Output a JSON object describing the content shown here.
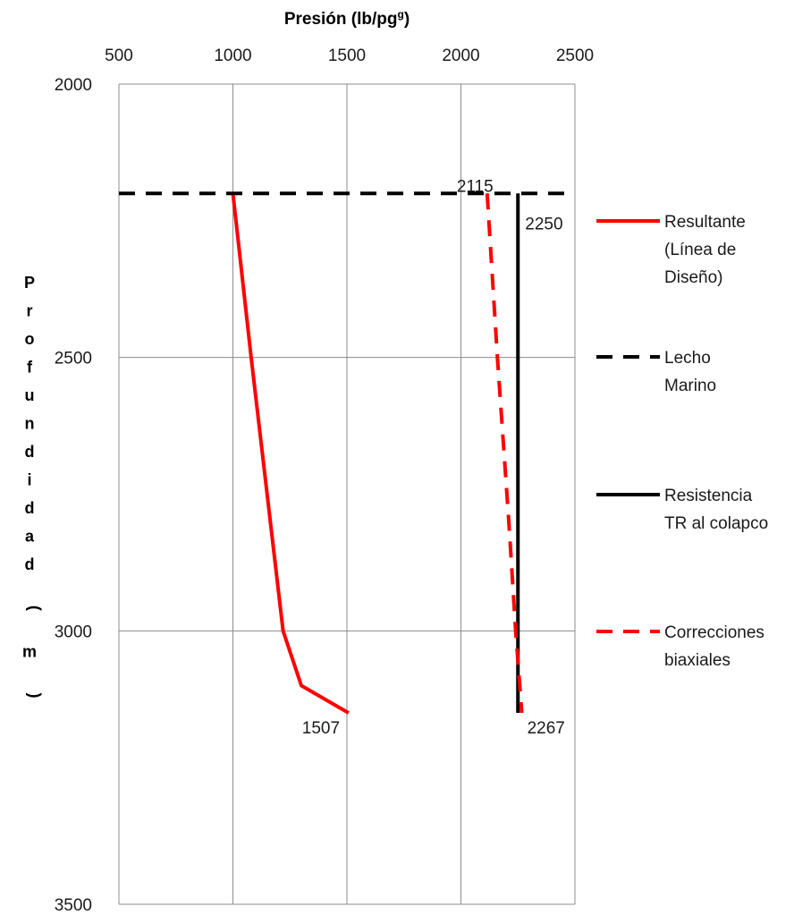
{
  "chart_data": {
    "type": "line",
    "title": "",
    "xlabel": "Presión (lb/pg",
    "xlabel_sup": "g",
    "xlabel_suffix": ")",
    "ylabel": "Profundidad ( m )",
    "xlim": [
      500,
      2500
    ],
    "ylim": [
      2000,
      3500
    ],
    "y_inverted": true,
    "x_axis_position": "top",
    "grid": true,
    "x_ticks": [
      500,
      1000,
      1500,
      2000,
      2500
    ],
    "y_ticks": [
      2000,
      2500,
      3000,
      3500
    ],
    "legend_position": "right",
    "series": [
      {
        "name": "Resultante (Línea de Diseño)",
        "color": "#ff0000",
        "style": "solid",
        "points": [
          [
            1000,
            2200
          ],
          [
            1080,
            2500
          ],
          [
            1220,
            3000
          ],
          [
            1300,
            3100
          ],
          [
            1507,
            3150
          ]
        ]
      },
      {
        "name": "Lecho Marino",
        "color": "#000000",
        "style": "dashed",
        "points": [
          [
            500,
            2200
          ],
          [
            2500,
            2200
          ]
        ]
      },
      {
        "name": "Resistencia TR al colapco",
        "color": "#000000",
        "style": "solid",
        "points": [
          [
            2250,
            2200
          ],
          [
            2250,
            3150
          ]
        ]
      },
      {
        "name": "Correcciones biaxiales",
        "color": "#ff0000",
        "style": "dashed",
        "points": [
          [
            2115,
            2200
          ],
          [
            2160,
            2500
          ],
          [
            2210,
            2800
          ],
          [
            2240,
            3000
          ],
          [
            2267,
            3150
          ]
        ]
      }
    ],
    "annotations": [
      {
        "text": "2115",
        "x": 2115,
        "y": 2200
      },
      {
        "text": "2250",
        "x": 2250,
        "y": 2200
      },
      {
        "text": "1507",
        "x": 1507,
        "y": 3150
      },
      {
        "text": "2267",
        "x": 2267,
        "y": 3150
      }
    ],
    "legend": [
      {
        "lines": [
          "Resultante",
          "(Línea de",
          "Diseño)"
        ],
        "color": "#ff0000",
        "style": "solid"
      },
      {
        "lines": [
          "Lecho",
          "Marino"
        ],
        "color": "#000000",
        "style": "dashed"
      },
      {
        "lines": [
          "Resistencia",
          "TR al colapco"
        ],
        "color": "#000000",
        "style": "solid"
      },
      {
        "lines": [
          "Correcciones",
          "biaxiales"
        ],
        "color": "#ff0000",
        "style": "dashed"
      }
    ]
  }
}
